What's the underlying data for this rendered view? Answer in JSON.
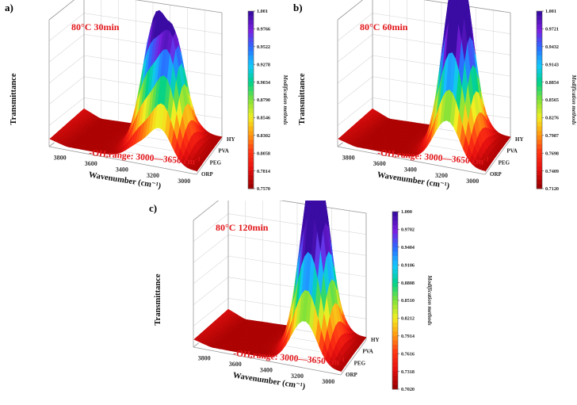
{
  "colorscale": [
    "#3a0ca3",
    "#7a20e0",
    "#2a6cff",
    "#14c8ff",
    "#00d28a",
    "#7ee23a",
    "#f2ee22",
    "#ff9a10",
    "#ff3414",
    "#e61010",
    "#9e0000"
  ],
  "chart_data": [
    {
      "type": "surface3d",
      "panel_label": "a",
      "condition": "80°C  30min",
      "annotation_prefix": "-OH,range: 3000—3650 cm",
      "annotation_sup": "-1",
      "xlabel": "Wavenumber (cm⁻¹)",
      "ylabel": "Transmittance",
      "zlabel": "Modification methods",
      "x_ticks": [
        "3800",
        "3600",
        "3400",
        "3200",
        "3000"
      ],
      "x_range": [
        3900,
        2950
      ],
      "categories": [
        "HY",
        "PVA",
        "PEG",
        "ORP"
      ],
      "peaks": [
        {
          "wavenumber": 3330,
          "height": 1.0
        },
        {
          "wavenumber": 3185,
          "height": 0.93
        }
      ],
      "colorbar_ticks": [
        "1.001",
        "0.9766",
        "0.9522",
        "0.9278",
        "0.9034",
        "0.8790",
        "0.8546",
        "0.8302",
        "0.8058",
        "0.7814",
        "0.7570"
      ],
      "colorbar_range": [
        0.757,
        1.001
      ]
    },
    {
      "type": "surface3d",
      "panel_label": "b",
      "condition": "80°C  60min",
      "annotation_prefix": "-OH,range: 3000—3650 cm",
      "annotation_sup": "-1",
      "xlabel": "Wavenumber (cm⁻¹)",
      "ylabel": "Transmittance",
      "zlabel": "Modification methods",
      "x_ticks": [
        "3800",
        "3600",
        "3400",
        "3200",
        "3000"
      ],
      "x_range": [
        3900,
        2950
      ],
      "categories": [
        "HY",
        "PVA",
        "PEG",
        "ORP"
      ],
      "peaks": [
        {
          "wavenumber": 3260,
          "height": 1.0
        },
        {
          "wavenumber": 3180,
          "height": 0.96
        }
      ],
      "colorbar_ticks": [
        "1.001",
        "0.9721",
        "0.9432",
        "0.9143",
        "0.8854",
        "0.8565",
        "0.8276",
        "0.7987",
        "0.7698",
        "0.7409",
        "0.7120"
      ],
      "colorbar_range": [
        0.712,
        1.001
      ]
    },
    {
      "type": "surface3d",
      "panel_label": "c",
      "condition": "80°C  120min",
      "annotation_prefix": "-OH,range: 3000—3650 cm",
      "annotation_sup": "-1",
      "xlabel": "Wavenumber (cm⁻¹)",
      "ylabel": "Transmittance",
      "zlabel": "Modification methods",
      "x_ticks": [
        "3800",
        "3600",
        "3400",
        "3200",
        "3000"
      ],
      "x_range": [
        3900,
        2950
      ],
      "categories": [
        "HY",
        "PVA",
        "PEG",
        "ORP"
      ],
      "peaks": [
        {
          "wavenumber": 3250,
          "height": 1.0
        },
        {
          "wavenumber": 3170,
          "height": 0.97
        }
      ],
      "colorbar_ticks": [
        "1.000",
        "0.9702",
        "0.9404",
        "0.9106",
        "0.8808",
        "0.8510",
        "0.8212",
        "0.7914",
        "0.7616",
        "0.7318",
        "0.7020"
      ],
      "colorbar_range": [
        0.702,
        1.0
      ]
    }
  ]
}
